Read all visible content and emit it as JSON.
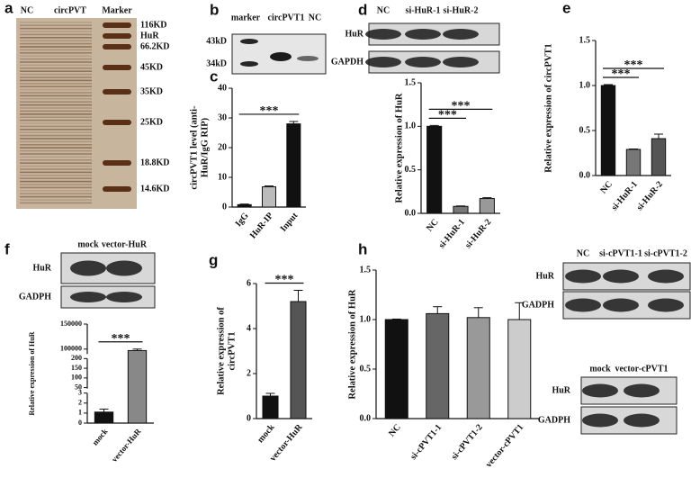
{
  "blots": [
    {
      "letter": "a",
      "lanes": [
        "NC",
        "circPVT",
        "Marker"
      ],
      "markers": [
        "116KD",
        "HuR",
        "66.2KD",
        "45KD",
        "35KD",
        "25KD",
        "18.8KD",
        "14.6KD"
      ]
    },
    {
      "letter": "b",
      "lanes": [
        "marker",
        "circPVT1",
        "NC"
      ],
      "rows": [
        "43kD",
        "34kD"
      ]
    },
    {
      "letter": "d",
      "lanes": [
        "NC",
        "si-HuR-1",
        "si-HuR-2"
      ],
      "rows": [
        "HuR",
        "GAPDH"
      ]
    },
    {
      "letter": "f",
      "lanes": [
        "mock",
        "vector-HuR"
      ],
      "rows": [
        "HuR",
        "GADPH"
      ]
    },
    {
      "lanes": [
        "NC",
        "si-cPVT1-1",
        "si-cPVT1-2"
      ],
      "rows": [
        "HuR",
        "GADPH"
      ]
    },
    {
      "lanes": [
        "mock",
        "vector-cPVT1"
      ],
      "rows": [
        "HuR",
        "GADPH"
      ]
    }
  ],
  "chart_data": [
    {
      "type": "bar",
      "letter": "c",
      "ylabel": [
        "circPVT1 level (anti-",
        "HuR/IgG RIP)"
      ],
      "categories": [
        "IgG",
        "HuR-IP",
        "Input"
      ],
      "values": [
        0.8,
        6.8,
        28
      ],
      "errors": [
        0.2,
        0.3,
        0.8
      ],
      "colors": [
        "#111111",
        "#bbbbbb",
        "#111111"
      ],
      "ylim": [
        0,
        40
      ],
      "yticks": [
        0,
        10,
        20,
        30,
        40
      ],
      "annotations": [
        "***"
      ]
    },
    {
      "type": "bar",
      "ylabel": [
        "Relative expression of HuR"
      ],
      "categories": [
        "NC",
        "si-HuR-1",
        "si-HuR-2"
      ],
      "values": [
        1.0,
        0.08,
        0.17
      ],
      "errors": [
        0.01,
        0.005,
        0.01
      ],
      "colors": [
        "#111111",
        "#777777",
        "#999999"
      ],
      "ylim": [
        0,
        1.5
      ],
      "yticks": [
        {
          "value": 0,
          "label": "0.0"
        },
        {
          "value": 0.5,
          "label": "0.5"
        },
        {
          "value": 1,
          "label": "1.0"
        },
        {
          "value": 1.5,
          "label": "1.5"
        }
      ],
      "annotations": [
        "***",
        "***"
      ]
    },
    {
      "type": "bar",
      "letter": "e",
      "ylabel": [
        "Relative expression of circPVT1"
      ],
      "categories": [
        "NC",
        "si-HuR-1",
        "si-HuR-2"
      ],
      "values": [
        1.0,
        0.29,
        0.41
      ],
      "errors": [
        0.01,
        0.005,
        0.05
      ],
      "colors": [
        "#111111",
        "#777777",
        "#555555"
      ],
      "ylim": [
        0,
        1.5
      ],
      "yticks": [
        {
          "value": 0,
          "label": "0.0"
        },
        {
          "value": 0.5,
          "label": "0.5"
        },
        {
          "value": 1,
          "label": "1.0"
        },
        {
          "value": 1.5,
          "label": "1.5"
        }
      ],
      "annotations": [
        "***",
        "***"
      ]
    },
    {
      "type": "bar",
      "ylabel": [
        "Relative expression of HuR"
      ],
      "categories": [
        "mock",
        "vector-HuR"
      ],
      "values": [
        1.1,
        97000
      ],
      "errors": [
        0.3,
        3000
      ],
      "colors": [
        "#111111",
        "#888888"
      ],
      "ylim": [
        0,
        150000
      ],
      "ysegments": [
        [
          0,
          3
        ],
        [
          45,
          200
        ],
        [
          90000,
          150000
        ]
      ],
      "yticks": [
        0,
        1,
        2,
        3,
        50,
        100,
        150,
        200,
        100000,
        150000
      ],
      "annotations": [
        "***"
      ]
    },
    {
      "type": "bar",
      "letter": "g",
      "ylabel": [
        "Relative expression of",
        "circPVT1"
      ],
      "categories": [
        "mock",
        "vector-HuR"
      ],
      "values": [
        1.0,
        5.2
      ],
      "errors": [
        0.12,
        0.5
      ],
      "colors": [
        "#111111",
        "#555555"
      ],
      "ylim": [
        0,
        6
      ],
      "yticks": [
        0,
        2,
        4,
        6
      ],
      "annotations": [
        "***"
      ]
    },
    {
      "type": "bar",
      "letter": "h",
      "ylabel": [
        "Relative expression of HuR"
      ],
      "categories": [
        "NC",
        "si-cPVT1-1",
        "si-cPVT1-2",
        "vector-cPVT1"
      ],
      "values": [
        1.0,
        1.06,
        1.02,
        1.0
      ],
      "errors": [
        0.005,
        0.07,
        0.1,
        0.17
      ],
      "colors": [
        "#111111",
        "#666666",
        "#999999",
        "#cccccc"
      ],
      "ylim": [
        0,
        1.5
      ],
      "yticks": [
        {
          "value": 0,
          "label": "0.0"
        },
        {
          "value": 0.5,
          "label": "0.5"
        },
        {
          "value": 1,
          "label": "1.0"
        },
        {
          "value": 1.5,
          "label": "1.5"
        }
      ],
      "annotations": []
    }
  ]
}
